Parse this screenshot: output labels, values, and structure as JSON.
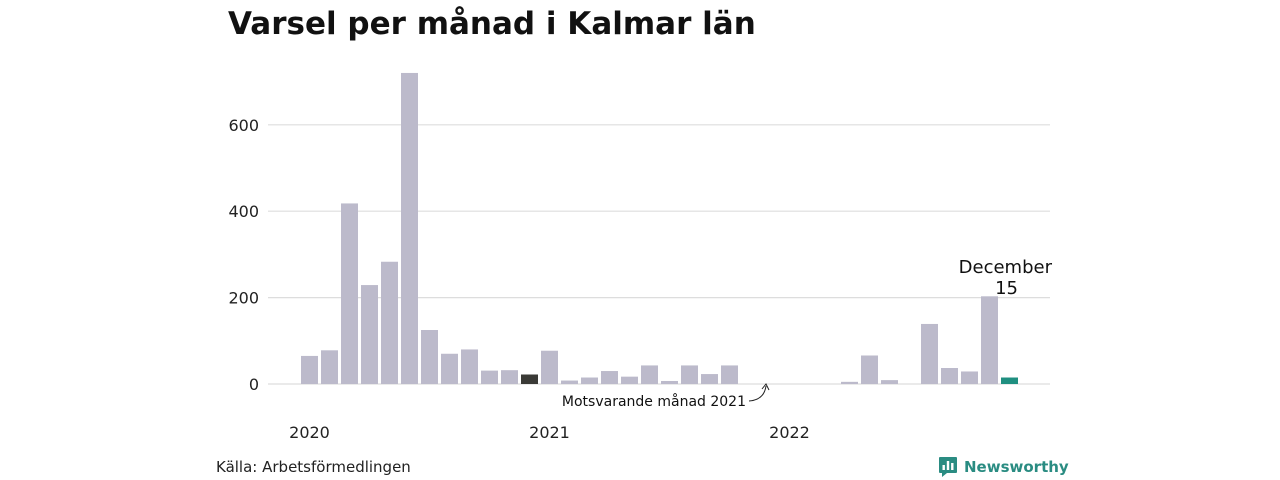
{
  "title": "Varsel per månad i Kalmar län",
  "source": "Källa: Arbetsförmedlingen",
  "brand": "Newsworthy",
  "colors": {
    "bar": "#bcbacb",
    "comparison": "#3a3a36",
    "highlight": "#1f8f80",
    "grid": "#dddddd",
    "brand": "#2a8c82"
  },
  "chart_data": {
    "type": "bar",
    "ylim": [
      0,
      720
    ],
    "yticks": [
      0,
      200,
      400,
      600
    ],
    "ytick_labels": [
      "0",
      "200",
      "400",
      "600"
    ],
    "xtick_labels": [
      "2020",
      "2021",
      "2022"
    ],
    "grid": true,
    "categories": [
      "2020-01",
      "2020-02",
      "2020-03",
      "2020-04",
      "2020-05",
      "2020-06",
      "2020-07",
      "2020-08",
      "2020-09",
      "2020-10",
      "2020-11",
      "2020-12",
      "2021-01",
      "2021-02",
      "2021-03",
      "2021-04",
      "2021-05",
      "2021-06",
      "2021-07",
      "2021-08",
      "2021-09",
      "2021-10",
      "2021-11",
      "2021-12",
      "2022-01",
      "2022-02",
      "2022-03",
      "2022-04",
      "2022-05",
      "2022-06",
      "2022-07",
      "2022-08",
      "2022-09",
      "2022-10",
      "2022-11",
      "2022-12"
    ],
    "values": [
      65,
      78,
      418,
      229,
      283,
      720,
      125,
      70,
      80,
      31,
      32,
      22,
      77,
      8,
      15,
      30,
      17,
      43,
      7,
      43,
      23,
      43,
      0,
      0,
      0,
      0,
      0,
      5,
      66,
      9,
      0,
      139,
      37,
      29,
      203,
      15
    ],
    "comparison_index": 11,
    "highlight_index": 35,
    "highlight_label": "December",
    "highlight_value_label": "15",
    "annotation": "Motsvarande månad 2021"
  }
}
